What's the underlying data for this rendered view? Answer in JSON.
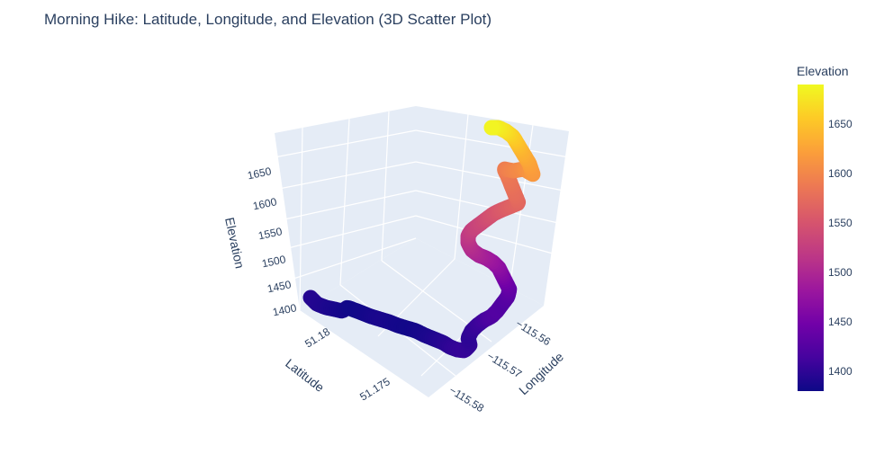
{
  "chart_data": {
    "type": "scatter",
    "title": "Morning Hike: Latitude, Longitude, and Elevation (3D Scatter Plot)",
    "scene": {
      "x_axis": {
        "title": "Latitude",
        "ticks": [
          "51.18",
          "51.175"
        ]
      },
      "y_axis": {
        "title": "Longitude",
        "ticks": [
          "−115.56",
          "−115.57",
          "−115.58"
        ]
      },
      "z_axis": {
        "title": "Elevation",
        "ticks": [
          "1400",
          "1450",
          "1500",
          "1550",
          "1600",
          "1650"
        ]
      },
      "grid": true,
      "background": "#e5ecf6"
    },
    "colorbar": {
      "title": "Elevation",
      "colorscale": "Plasma",
      "cmin": 1380,
      "cmax": 1690,
      "ticks": [
        "1400",
        "1450",
        "1500",
        "1550",
        "1600",
        "1650"
      ]
    },
    "track_elevation": [
      1395,
      1393,
      1390,
      1387,
      1384,
      1382,
      1383,
      1386,
      1388,
      1386,
      1384,
      1383,
      1385,
      1388,
      1392,
      1396,
      1401,
      1405,
      1402,
      1399,
      1404,
      1410,
      1420,
      1425,
      1423,
      1430,
      1440,
      1455,
      1468,
      1480,
      1490,
      1500,
      1510,
      1520,
      1530,
      1536,
      1545,
      1552,
      1560,
      1566,
      1573,
      1578,
      1583,
      1590,
      1598,
      1606,
      1614,
      1620,
      1628,
      1638,
      1650,
      1663,
      1676,
      1686
    ]
  }
}
